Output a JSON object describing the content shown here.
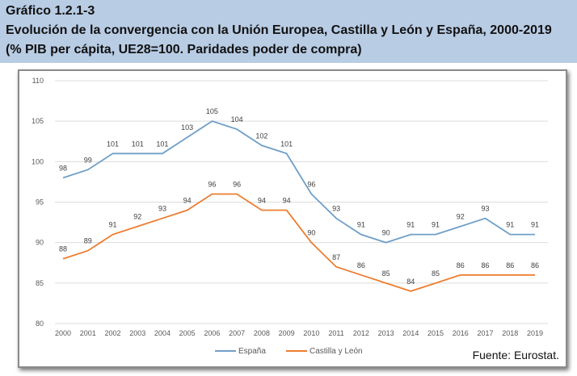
{
  "header": {
    "code": "Gráfico 1.2.1-3",
    "title": "Evolución de la convergencia con la Unión Europea, Castilla y León y España, 2000-2019",
    "subtitle": "(% PIB per cápita, UE28=100. Paridades poder de compra)"
  },
  "source": "Fuente: Eurostat.",
  "chart_data": {
    "type": "line",
    "x": [
      "2000",
      "2001",
      "2002",
      "2003",
      "2004",
      "2005",
      "2006",
      "2007",
      "2008",
      "2009",
      "2010",
      "2011",
      "2012",
      "2013",
      "2014",
      "2015",
      "2016",
      "2017",
      "2018",
      "2019"
    ],
    "ylim": [
      80,
      110
    ],
    "yticks": [
      80,
      85,
      90,
      95,
      100,
      105,
      110
    ],
    "grid": true,
    "legend": "bottom",
    "series": [
      {
        "name": "España",
        "color": "#6f9fc8",
        "values": [
          98,
          99,
          101,
          101,
          101,
          103,
          105,
          104,
          102,
          101,
          96,
          93,
          91,
          90,
          91,
          91,
          92,
          93,
          91,
          91
        ]
      },
      {
        "name": "Castilla y León",
        "color": "#ed7d31",
        "values": [
          88,
          89,
          91,
          92,
          93,
          94,
          96,
          96,
          94,
          94,
          90,
          87,
          86,
          85,
          84,
          85,
          86,
          86,
          86,
          86
        ]
      }
    ]
  }
}
